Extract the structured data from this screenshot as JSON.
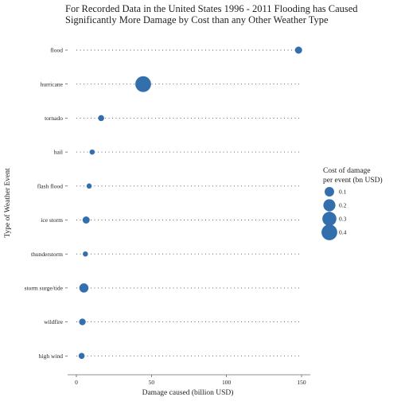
{
  "chart_data": {
    "type": "scatter",
    "title": "For Recorded Data in the United States 1996 - 2011 Flooding has Caused Significantly More Damage by Cost than any Other Weather Type",
    "title_lines": [
      "For Recorded Data in the United States 1996 - 2011 Flooding has Caused",
      "Significantly More Damage by Cost than any Other Weather Type"
    ],
    "xlabel": "Damage caused (billion USD)",
    "ylabel": "Type of Weather Event",
    "xlim": [
      0,
      150
    ],
    "xticks": [
      0,
      50,
      100,
      150
    ],
    "categories": [
      "flood",
      "hurricane",
      "tornado",
      "hail",
      "flash flood",
      "ice storm",
      "thunderstorm",
      "storm surge/tide",
      "wildfire",
      "high wind"
    ],
    "values": [
      148,
      44.5,
      16.5,
      10.5,
      8.5,
      6.5,
      6,
      5,
      4,
      3.5
    ],
    "size_values": [
      0.04,
      0.4,
      0.02,
      0.01,
      0.01,
      0.04,
      0.01,
      0.09,
      0.03,
      0.02
    ],
    "legend": {
      "title_lines": [
        "Cost of damage",
        "per event (bn USD)"
      ],
      "items": [
        "0.1",
        "0.2",
        "0.3",
        "0.4"
      ],
      "values": [
        0.1,
        0.2,
        0.3,
        0.4
      ],
      "position": "right"
    },
    "point_color": "#336fac",
    "guide_color": "#555555",
    "grid": false
  }
}
